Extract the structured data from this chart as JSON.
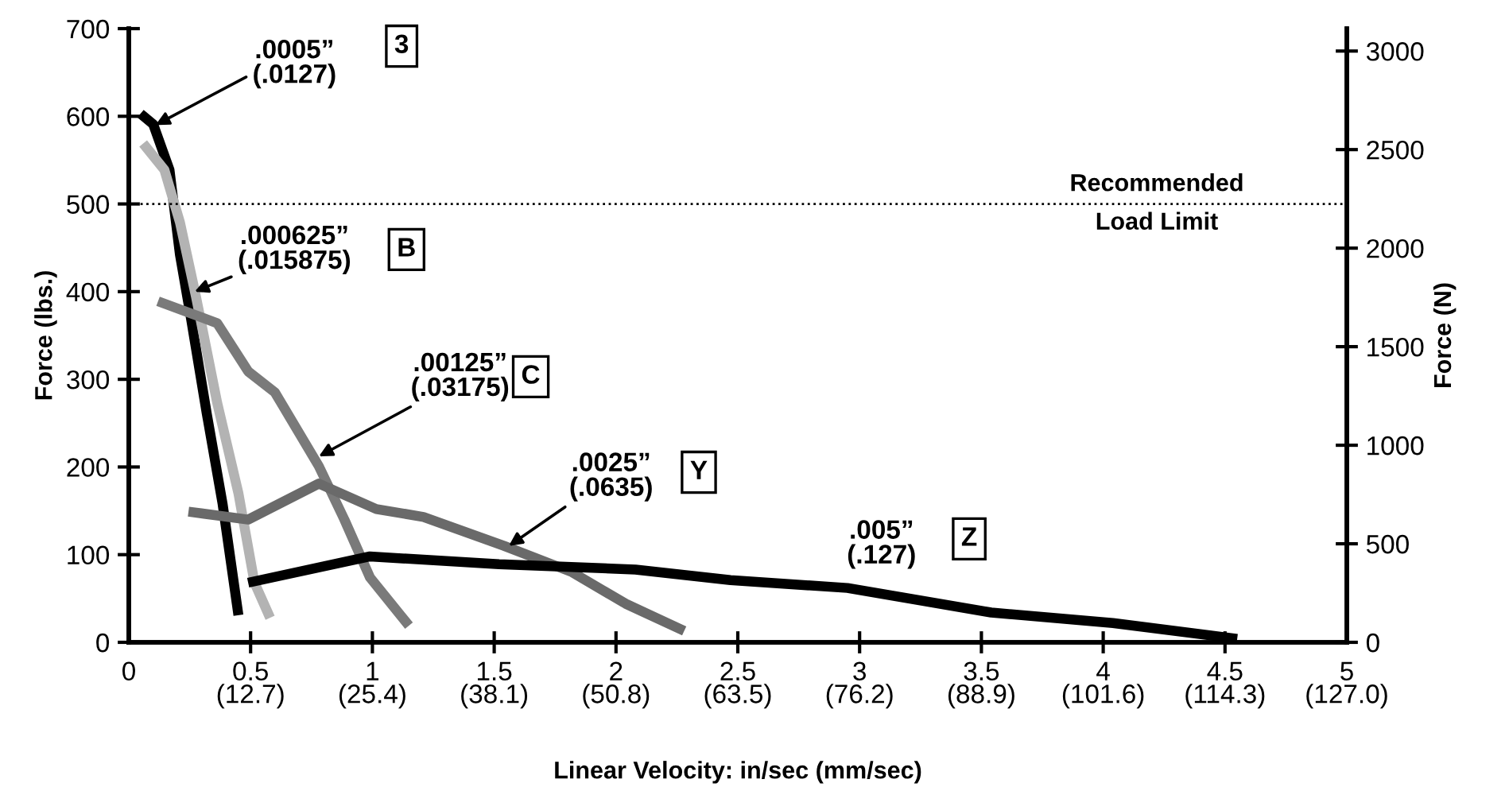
{
  "chart_data": {
    "type": "line",
    "xlabel": "Linear Velocity: in/sec (mm/sec)",
    "ylabel": "Force (lbs.)",
    "y2label": "Force (N)",
    "xlim": [
      0,
      5
    ],
    "xticks": [
      0,
      0.5,
      1,
      1.5,
      2,
      2.5,
      3,
      3.5,
      4,
      4.5,
      5
    ],
    "x2lim": [
      0,
      127
    ],
    "x2ticks": [
      {
        "value": 12.7,
        "label": "(12.7)"
      },
      {
        "value": 25.4,
        "label": "(25.4)"
      },
      {
        "value": 38.1,
        "label": "(38.1)"
      },
      {
        "value": 50.8,
        "label": "(50.8)"
      },
      {
        "value": 63.5,
        "label": "(63.5)"
      },
      {
        "value": 76.2,
        "label": "(76.2)"
      },
      {
        "value": 88.9,
        "label": "(88.9)"
      },
      {
        "value": 101.6,
        "label": "(101.6)"
      },
      {
        "value": 114.3,
        "label": "(114.3)"
      },
      {
        "value": 127,
        "label": "(127.0)"
      }
    ],
    "ylim": [
      0,
      700
    ],
    "yticks": [
      0,
      100,
      200,
      300,
      400,
      500,
      600,
      700
    ],
    "y2lim": [
      0,
      3113.8
    ],
    "y2ticks": [
      0,
      500,
      1000,
      1500,
      2000,
      2500,
      3000
    ],
    "grid": false,
    "line_style": "solid",
    "marker": "none",
    "ref_lines": [
      {
        "axis": "y",
        "value": 500,
        "label": "Recommended\nLoad Limit",
        "color": "#000000",
        "line_style": "dotted"
      }
    ],
    "series": [
      {
        "color": "#000000",
        "x": [
          0.048,
          0.1,
          0.167,
          0.21,
          0.255,
          0.32,
          0.385,
          0.45
        ],
        "values": [
          603,
          591,
          539,
          442,
          370,
          261,
          158,
          31
        ]
      },
      {
        "color": "#b3b3b3",
        "x": [
          0.059,
          0.146,
          0.21,
          0.276,
          0.363,
          0.45,
          0.516,
          0.58
        ],
        "values": [
          569,
          539,
          479,
          394,
          273,
          170,
          68,
          28
        ]
      },
      {
        "color": "#7a7a7a",
        "x": [
          0.12,
          0.363,
          0.49,
          0.6,
          0.78,
          0.885,
          0.99,
          1.15
        ],
        "values": [
          389,
          364,
          309,
          285,
          201,
          140,
          74,
          19
        ]
      },
      {
        "color": "#6a6a6a",
        "x": [
          0.245,
          0.49,
          0.78,
          1.016,
          1.21,
          1.54,
          1.82,
          2.04,
          2.28
        ],
        "values": [
          149,
          140,
          181,
          152,
          143,
          110,
          80,
          44,
          13
        ]
      },
      {
        "color": "#000000",
        "x": [
          0.49,
          0.99,
          1.52,
          2.08,
          2.47,
          2.95,
          3.54,
          4.04,
          4.55
        ],
        "values": [
          68,
          98,
          89,
          83,
          71,
          62,
          34,
          22,
          4
        ]
      }
    ],
    "annotations": [
      {
        "text": ".0005”\n(.0127)",
        "x": 0.11,
        "y": 590
      },
      {
        "text": ".000625”\n(.015875)",
        "x": 0.27,
        "y": 400
      },
      {
        "text": ".00125”\n(.03175)",
        "x": 0.78,
        "y": 212
      },
      {
        "text": ".0025”\n(.0635)",
        "x": 1.56,
        "y": 110
      },
      ".005”\n(.127)",
      "3",
      "B",
      "C",
      "Y",
      "Z"
    ]
  }
}
